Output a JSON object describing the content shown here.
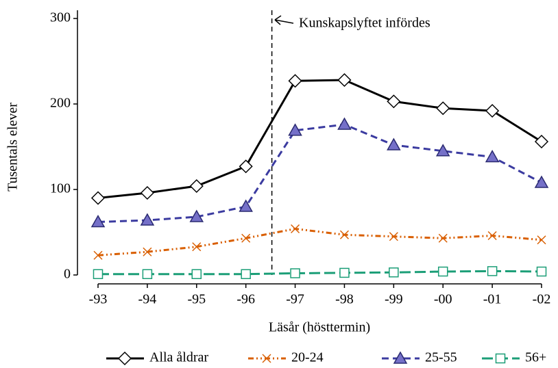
{
  "chart_data": {
    "type": "line",
    "annotation": "Kunskapslyftet infördes",
    "x_label": "Läsår (hösttermin)",
    "y_label": "Tusentals elever",
    "categories": [
      "-93",
      "-94",
      "-95",
      "-96",
      "-97",
      "-98",
      "-99",
      "-00",
      "-01",
      "-02"
    ],
    "series": [
      {
        "name": "Alla åldrar",
        "color": "#000000",
        "marker": "diamond",
        "dash": "solid",
        "values": [
          90,
          96,
          104,
          127,
          227,
          228,
          203,
          195,
          192,
          156
        ]
      },
      {
        "name": "20-24",
        "color": "#d95f02",
        "marker": "x",
        "dash": "dashdotdot",
        "values": [
          23,
          27,
          33,
          43,
          54,
          47,
          45,
          43,
          46,
          41
        ]
      },
      {
        "name": "25-55",
        "color": "#3b3ba0",
        "marker": "triangle",
        "dash": "dash",
        "values": [
          62,
          64,
          68,
          80,
          169,
          176,
          152,
          145,
          138,
          108
        ]
      },
      {
        "name": "56+",
        "color": "#1b9e77",
        "marker": "square",
        "dash": "longdash",
        "values": [
          1,
          1,
          1,
          1,
          2,
          2.5,
          3,
          4,
          4.5,
          4
        ]
      }
    ],
    "ylim": [
      0,
      300
    ],
    "yticks": [
      0,
      100,
      200,
      300
    ]
  }
}
